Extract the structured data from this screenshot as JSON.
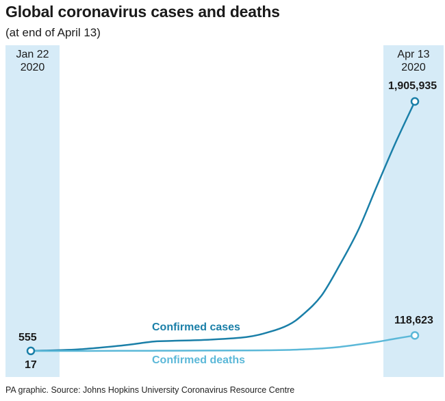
{
  "title": "Global coronavirus cases and deaths",
  "subtitle": "(at end of April 13)",
  "source": "PA graphic. Source: Johns Hopkins University Coronavirus Resource Centre",
  "colors": {
    "cases": "#1a7fa8",
    "deaths": "#5bb8d8",
    "band": "#d6ebf7"
  },
  "chart_data": {
    "type": "line",
    "title": "Global coronavirus cases and deaths",
    "subtitle": "(at end of April 13)",
    "start_label": {
      "date": "Jan 22",
      "year": "2020"
    },
    "end_label": {
      "date": "Apr 13",
      "year": "2020"
    },
    "x": [
      "2020-01-22",
      "2020-02-01",
      "2020-02-10",
      "2020-02-17",
      "2020-02-20",
      "2020-02-29",
      "2020-03-08",
      "2020-03-13",
      "2020-03-17",
      "2020-03-20",
      "2020-03-24",
      "2020-03-28",
      "2020-04-01",
      "2020-04-05",
      "2020-04-09",
      "2020-04-13"
    ],
    "series": [
      {
        "name": "Confirmed cases",
        "values": [
          555,
          12000,
          40000,
          71000,
          76000,
          86000,
          106000,
          146000,
          199000,
          275000,
          420000,
          660000,
          930000,
          1270000,
          1600000,
          1905935
        ],
        "start_value_label": "555",
        "end_value_label": "1,905,935"
      },
      {
        "name": "Confirmed deaths",
        "values": [
          17,
          260,
          900,
          1800,
          2200,
          2900,
          3600,
          5400,
          8000,
          11300,
          19000,
          31000,
          50000,
          70000,
          95000,
          118623
        ],
        "start_value_label": "17",
        "end_value_label": "118,623"
      }
    ],
    "ylim": [
      0,
      1905935
    ],
    "grid": false,
    "legend": "inline labels"
  }
}
